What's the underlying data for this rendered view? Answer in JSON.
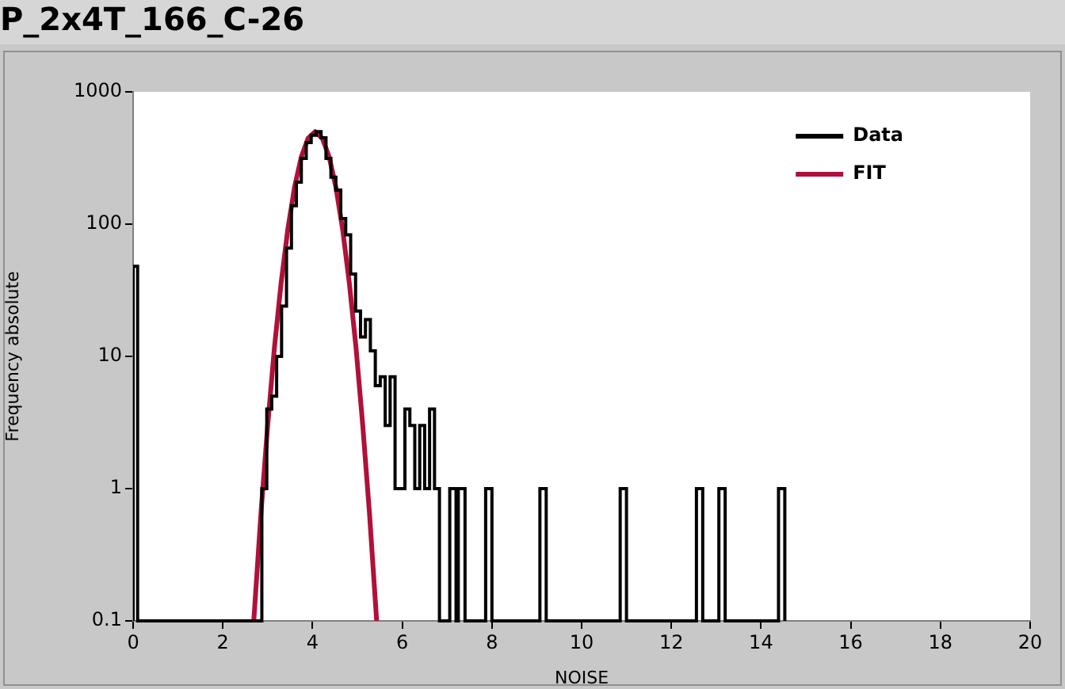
{
  "chart_data": {
    "type": "histogram",
    "title": "P_2x4T_166_C-26",
    "xlabel": "NOISE",
    "ylabel": "Frequency absolute",
    "log": "y",
    "xlim": [
      0,
      20
    ],
    "xticks": [
      0,
      2,
      4,
      6,
      8,
      10,
      12,
      14,
      16,
      18,
      20
    ],
    "ylim": [
      0.1,
      1000
    ],
    "yticks": [
      0.1,
      1,
      10,
      100,
      1000
    ],
    "grid": false,
    "legend": "top right",
    "series": [
      {
        "name": "Data",
        "type": "histogram",
        "color": "#000000",
        "bins": [
          0,
          0.1,
          2.87,
          2.98,
          3.09,
          3.2,
          3.31,
          3.42,
          3.53,
          3.64,
          3.75,
          3.86,
          3.97,
          4.08,
          4.19,
          4.3,
          4.41,
          4.52,
          4.63,
          4.74,
          4.85,
          4.96,
          5.07,
          5.18,
          5.29,
          5.4,
          5.51,
          5.62,
          5.73,
          5.84,
          5.95,
          6.06,
          6.17,
          6.28,
          6.39,
          6.5,
          6.61,
          6.72,
          6.83,
          7.06,
          7.2,
          7.25,
          7.4,
          7.86,
          8.0,
          9.07,
          9.21,
          10.86,
          11.0,
          12.56,
          12.7,
          13.06,
          13.2,
          14.39,
          14.53
        ],
        "values": [
          48,
          null,
          1,
          4,
          5,
          10,
          24,
          66,
          138,
          208,
          314,
          414,
          470,
          500,
          450,
          314,
          226,
          181,
          110,
          83,
          42,
          22,
          14,
          19,
          11,
          6,
          7,
          3,
          7,
          1,
          1,
          4,
          3,
          1,
          3,
          1,
          4,
          1,
          null,
          1,
          null,
          1,
          null,
          1,
          null,
          1,
          null,
          1,
          null,
          1,
          null,
          1,
          null,
          1
        ]
      },
      {
        "name": "FIT",
        "type": "line",
        "color": "#b0103a",
        "x": [
          2.69,
          2.85,
          3.0,
          3.15,
          3.3,
          3.45,
          3.6,
          3.75,
          3.9,
          4.06,
          4.22,
          4.37,
          4.52,
          4.67,
          4.82,
          4.97,
          5.12,
          5.27,
          5.43
        ],
        "values": [
          0.1,
          0.65,
          3.0,
          11.6,
          36,
          92,
          191,
          323,
          445,
          500,
          445,
          323,
          191,
          92,
          36,
          11.6,
          3.0,
          0.65,
          0.1
        ]
      }
    ]
  }
}
